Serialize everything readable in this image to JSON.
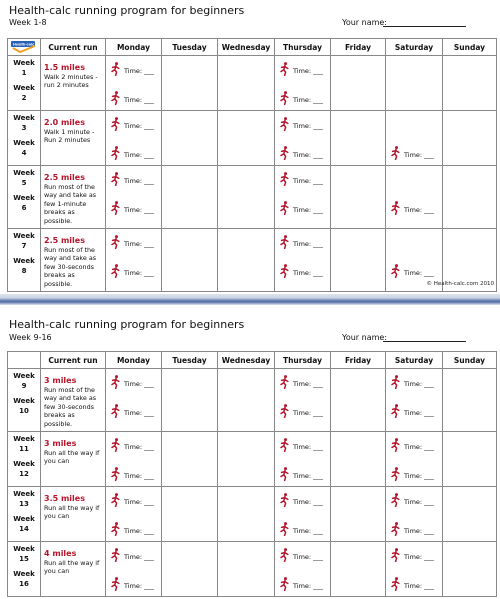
{
  "sheets": [
    {
      "title": "Health-calc running program for beginners",
      "subtitle": "Week 1-8",
      "name_label": "Your name:",
      "logo_text": "Health-calc",
      "headers": [
        "Current run",
        "Monday",
        "Tuesday",
        "Wednesday",
        "Thursday",
        "Friday",
        "Saturday",
        "Sunday"
      ],
      "rows": [
        {
          "week_a": "Week",
          "num_a": "1",
          "week_b": "Week",
          "num_b": "2",
          "run_title": "1.5 miles",
          "run_desc": "Walk 2 minutes - run 2 minutes",
          "monday": "Time: ___",
          "thursday": "Time: ___",
          "saturday": ""
        },
        {
          "week_a": "Week",
          "num_a": "3",
          "week_b": "Week",
          "num_b": "4",
          "run_title": "2.0 miles",
          "run_desc": "Walk 1 minute - Run 2 minutes",
          "monday": "Time: ___",
          "thursday": "Time: ___",
          "saturday": "Time: ___"
        },
        {
          "week_a": "Week",
          "num_a": "5",
          "week_b": "Week",
          "num_b": "6",
          "run_title": "2.5 miles",
          "run_desc": "Run most of the way and take as few 1-minute breaks as possible.",
          "monday": "Time: ___",
          "thursday": "Time: ___",
          "saturday": "Time: ___"
        },
        {
          "week_a": "Week",
          "num_a": "7",
          "week_b": "Week",
          "num_b": "8",
          "run_title": "2.5 miles",
          "run_desc": "Run most of the way and take as few 30-seconds breaks as possible.",
          "monday": "Time: ___",
          "thursday": "Time: ___",
          "saturday": "Time: ___"
        }
      ],
      "copyright": "© Health-calc.com 2010"
    },
    {
      "title": "Health-calc running program for beginners",
      "subtitle": "Week 9-16",
      "name_label": "Your name:",
      "logo_text": "",
      "headers": [
        "Current run",
        "Monday",
        "Tuesday",
        "Wednesday",
        "Thursday",
        "Friday",
        "Saturday",
        "Sunday"
      ],
      "rows": [
        {
          "week_a": "Week",
          "num_a": "9",
          "week_b": "Week",
          "num_b": "10",
          "run_title": "3 miles",
          "run_desc": "Run most of the way and take as few 30-seconds breaks as possible.",
          "monday": "Time: ___",
          "thursday": "Time: ___",
          "saturday": "Time: ___"
        },
        {
          "week_a": "Week",
          "num_a": "11",
          "week_b": "Week",
          "num_b": "12",
          "run_title": "3 miles",
          "run_desc": "Run all the way if you can",
          "monday": "Time: ___",
          "thursday": "Time: ___",
          "saturday": "Time: ___"
        },
        {
          "week_a": "Week",
          "num_a": "13",
          "week_b": "Week",
          "num_b": "14",
          "run_title": "3.5 miles",
          "run_desc": "Run all the way if you can",
          "monday": "Time: ___",
          "thursday": "Time: ___",
          "saturday": "Time: ___"
        },
        {
          "week_a": "Week",
          "num_a": "15",
          "week_b": "Week",
          "num_b": "16",
          "run_title": "4 miles",
          "run_desc": "Run all the way if you can",
          "monday": "Time: ___",
          "thursday": "Time: ___",
          "saturday": "Time: ___"
        }
      ]
    }
  ],
  "colors": {
    "accent_red": "#b5162b",
    "logo_blue": "#2a62b8",
    "logo_orange": "#f0a020",
    "divider_blue": "#4e6aa6"
  },
  "icons": {
    "runner": "runner-icon",
    "logo": "health-calc-logo"
  }
}
